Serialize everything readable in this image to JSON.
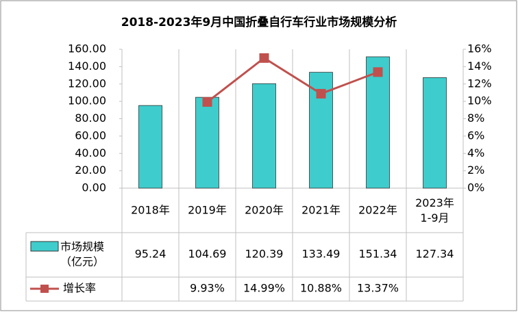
{
  "chart_data": {
    "type": "bar-line-table",
    "title": "2018-2023年9月中国折叠自行车行业市场规模分析",
    "categories": [
      "2018年",
      "2019年",
      "2020年",
      "2021年",
      "2022年",
      "2023年\n1-9月"
    ],
    "series": [
      {
        "name": "市场规模\n（亿元）",
        "type": "bar",
        "color": "#3fcccc",
        "values": [
          95.24,
          104.69,
          120.39,
          133.49,
          151.34,
          127.34
        ]
      },
      {
        "name": "增长率",
        "type": "line",
        "axis": "y2",
        "color": "#c0504d",
        "values": [
          null,
          9.93,
          14.99,
          10.88,
          13.37,
          null
        ],
        "value_labels": [
          null,
          "9.93%",
          "14.99%",
          "10.88%",
          "13.37%",
          null
        ]
      }
    ],
    "ylim": [
      0,
      160
    ],
    "yticks": [
      {
        "value": 0,
        "label": "0.00"
      },
      {
        "value": 20,
        "label": "20.00"
      },
      {
        "value": 40,
        "label": "40.00"
      },
      {
        "value": 60,
        "label": "60.00"
      },
      {
        "value": 80,
        "label": "80.00"
      },
      {
        "value": 100,
        "label": "100.00"
      },
      {
        "value": 120,
        "label": "120.00"
      },
      {
        "value": 140,
        "label": "140.00"
      },
      {
        "value": 160,
        "label": "160.00"
      }
    ],
    "y2lim": [
      0,
      16
    ],
    "y2ticks": [
      {
        "value": 0,
        "label": "0%"
      },
      {
        "value": 2,
        "label": "2%"
      },
      {
        "value": 4,
        "label": "4%"
      },
      {
        "value": 6,
        "label": "6%"
      },
      {
        "value": 8,
        "label": "8%"
      },
      {
        "value": 10,
        "label": "10%"
      },
      {
        "value": 12,
        "label": "12%"
      },
      {
        "value": 14,
        "label": "14%"
      },
      {
        "value": 16,
        "label": "16%"
      }
    ]
  }
}
